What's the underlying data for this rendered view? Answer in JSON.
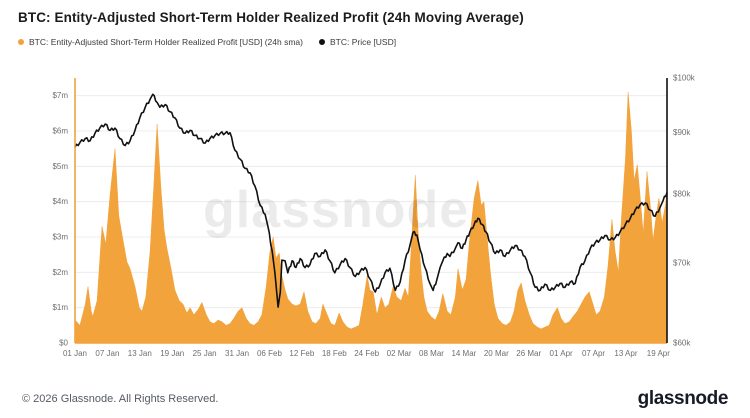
{
  "header": {
    "title": "BTC: Entity-Adjusted Short-Term Holder Realized Profit (24h Moving Average)",
    "legend": [
      {
        "label": "BTC: Entity-Adjusted Short-Term Holder Realized Profit [USD] (24h sma)",
        "color": "#F2A33C"
      },
      {
        "label": "BTC: Price [USD]",
        "color": "#111111"
      }
    ]
  },
  "watermark": "glassnode",
  "footer": {
    "copyright": "© 2026 Glassnode. All Rights Reserved.",
    "logo": "glassnode"
  },
  "chart_data": {
    "type": "area",
    "title": "BTC: Entity-Adjusted Short-Term Holder Realized Profit (24h Moving Average)",
    "grid": "horizontal",
    "legend_position": "top-left",
    "x_axis": {
      "unit": "date",
      "day_span": 109.6,
      "tick_days": [
        0,
        6,
        12,
        18,
        24,
        30,
        36,
        42,
        48,
        54,
        60,
        66,
        72,
        78,
        84,
        90,
        96,
        102,
        108
      ],
      "tick_labels": [
        "01 Jan",
        "07 Jan",
        "13 Jan",
        "19 Jan",
        "25 Jan",
        "31 Jan",
        "06 Feb",
        "12 Feb",
        "18 Feb",
        "24 Feb",
        "02 Mar",
        "08 Mar",
        "14 Mar",
        "20 Mar",
        "26 Mar",
        "01 Apr",
        "07 Apr",
        "13 Apr",
        "19 Apr"
      ]
    },
    "left_axis": {
      "scale": "linear",
      "min": 0,
      "max": 7.5,
      "unit": "USD millions",
      "color": "#F2A33C",
      "tick_values": [
        0,
        1,
        2,
        3,
        4,
        5,
        6,
        7
      ],
      "tick_labels": [
        "$0",
        "$1m",
        "$2m",
        "$3m",
        "$4m",
        "$5m",
        "$6m",
        "$7m"
      ]
    },
    "right_axis": {
      "scale": "log",
      "min": 60,
      "max": 100,
      "unit": "USD thousands",
      "color": "#111111",
      "tick_values": [
        60,
        70,
        80,
        90,
        100
      ],
      "tick_labels": [
        "$60k",
        "$70k",
        "$80k",
        "$90k",
        "$100k"
      ]
    },
    "series": [
      {
        "name": "BTC: Entity-Adjusted Short-Term Holder Realized Profit [USD] (24h sma)",
        "type": "area",
        "axis": "left",
        "color": "#F2A33C",
        "unit": "USD millions",
        "points": [
          [
            0,
            0.65
          ],
          [
            0.9,
            0.5
          ],
          [
            1.9,
            1.1
          ],
          [
            2.4,
            1.6
          ],
          [
            3,
            0.9
          ],
          [
            3.3,
            0.75
          ],
          [
            4.1,
            1.2
          ],
          [
            5,
            3.3
          ],
          [
            5.7,
            2.8
          ],
          [
            6.5,
            4.2
          ],
          [
            7.4,
            5.5
          ],
          [
            8.1,
            3.6
          ],
          [
            8.9,
            2.9
          ],
          [
            9.6,
            2.3
          ],
          [
            10.2,
            2.1
          ],
          [
            11.1,
            1.6
          ],
          [
            11.9,
            1.0
          ],
          [
            12.4,
            0.9
          ],
          [
            13.1,
            1.3
          ],
          [
            13.9,
            2.6
          ],
          [
            14.6,
            4.5
          ],
          [
            15.2,
            6.2
          ],
          [
            15.9,
            4.4
          ],
          [
            16.5,
            3.2
          ],
          [
            17,
            2.7
          ],
          [
            17.8,
            2.1
          ],
          [
            18.5,
            1.5
          ],
          [
            19.3,
            1.2
          ],
          [
            20,
            1.1
          ],
          [
            20.7,
            0.85
          ],
          [
            21.3,
            1.0
          ],
          [
            22,
            0.8
          ],
          [
            22.8,
            0.95
          ],
          [
            23.5,
            1.15
          ],
          [
            24.3,
            0.8
          ],
          [
            25,
            0.6
          ],
          [
            25.7,
            0.55
          ],
          [
            26.5,
            0.65
          ],
          [
            27.2,
            0.6
          ],
          [
            28,
            0.5
          ],
          [
            28.7,
            0.55
          ],
          [
            29.4,
            0.7
          ],
          [
            30.2,
            0.9
          ],
          [
            30.9,
            1.0
          ],
          [
            31.7,
            0.7
          ],
          [
            32.4,
            0.55
          ],
          [
            33.1,
            0.5
          ],
          [
            33.9,
            0.6
          ],
          [
            34.6,
            0.8
          ],
          [
            35.4,
            1.6
          ],
          [
            36.1,
            2.6
          ],
          [
            36.7,
            3.0
          ],
          [
            37.2,
            2.4
          ],
          [
            37.8,
            2.55
          ],
          [
            38.3,
            1.9
          ],
          [
            38.9,
            1.5
          ],
          [
            39.4,
            1.25
          ],
          [
            40.2,
            1.1
          ],
          [
            40.9,
            1.05
          ],
          [
            41.7,
            1.1
          ],
          [
            42.4,
            1.45
          ],
          [
            43.1,
            0.9
          ],
          [
            43.9,
            0.6
          ],
          [
            44.6,
            0.55
          ],
          [
            45.4,
            0.7
          ],
          [
            45.9,
            1.1
          ],
          [
            46.7,
            0.8
          ],
          [
            47.4,
            0.55
          ],
          [
            48.1,
            0.5
          ],
          [
            48.9,
            0.85
          ],
          [
            49.6,
            0.6
          ],
          [
            50.4,
            0.45
          ],
          [
            51.1,
            0.4
          ],
          [
            51.9,
            0.45
          ],
          [
            52.6,
            0.5
          ],
          [
            53.3,
            1.1
          ],
          [
            54.1,
            1.9
          ],
          [
            54.6,
            1.5
          ],
          [
            55.2,
            1.45
          ],
          [
            55.9,
            0.8
          ],
          [
            56.7,
            1.3
          ],
          [
            57.4,
            1.0
          ],
          [
            58.1,
            1.1
          ],
          [
            58.9,
            1.6
          ],
          [
            59.6,
            1.3
          ],
          [
            60.4,
            1.2
          ],
          [
            61.1,
            1.55
          ],
          [
            61.7,
            1.3
          ],
          [
            62.2,
            2.6
          ],
          [
            63,
            4.75
          ],
          [
            63.5,
            3.2
          ],
          [
            64.1,
            2.0
          ],
          [
            64.6,
            1.3
          ],
          [
            65.2,
            0.9
          ],
          [
            65.9,
            0.75
          ],
          [
            66.7,
            0.65
          ],
          [
            67.4,
            0.9
          ],
          [
            68.1,
            1.4
          ],
          [
            68.9,
            0.9
          ],
          [
            69.6,
            0.8
          ],
          [
            70.4,
            1.3
          ],
          [
            70.9,
            2.1
          ],
          [
            71.7,
            1.5
          ],
          [
            72.4,
            1.8
          ],
          [
            73.1,
            3.0
          ],
          [
            73.9,
            4.1
          ],
          [
            74.6,
            4.6
          ],
          [
            75.2,
            3.9
          ],
          [
            75.7,
            4.0
          ],
          [
            76.3,
            3.0
          ],
          [
            76.9,
            2.0
          ],
          [
            77.6,
            1.1
          ],
          [
            78.3,
            0.7
          ],
          [
            79.1,
            0.55
          ],
          [
            79.8,
            0.5
          ],
          [
            80.6,
            0.6
          ],
          [
            81.3,
            0.9
          ],
          [
            82,
            1.5
          ],
          [
            82.6,
            1.7
          ],
          [
            83.3,
            1.2
          ],
          [
            84.1,
            0.8
          ],
          [
            84.8,
            0.55
          ],
          [
            85.6,
            0.45
          ],
          [
            86.3,
            0.4
          ],
          [
            87,
            0.45
          ],
          [
            87.8,
            0.5
          ],
          [
            88.5,
            0.8
          ],
          [
            89.3,
            1.0
          ],
          [
            90,
            0.7
          ],
          [
            90.7,
            0.55
          ],
          [
            91.5,
            0.6
          ],
          [
            92.2,
            0.75
          ],
          [
            93,
            0.9
          ],
          [
            93.7,
            1.1
          ],
          [
            94.4,
            1.3
          ],
          [
            95.2,
            1.45
          ],
          [
            95.7,
            1.2
          ],
          [
            96.5,
            0.8
          ],
          [
            97.2,
            0.9
          ],
          [
            98,
            1.3
          ],
          [
            98.7,
            2.2
          ],
          [
            99.4,
            3.5
          ],
          [
            100,
            2.6
          ],
          [
            100.6,
            2.0
          ],
          [
            101.1,
            3.4
          ],
          [
            101.9,
            5.2
          ],
          [
            102.4,
            7.1
          ],
          [
            103,
            6.0
          ],
          [
            103.5,
            4.6
          ],
          [
            104.1,
            5.05
          ],
          [
            104.6,
            4.2
          ],
          [
            105.2,
            3.1
          ],
          [
            105.9,
            4.85
          ],
          [
            106.5,
            3.9
          ],
          [
            107,
            2.9
          ],
          [
            107.6,
            3.6
          ],
          [
            108.1,
            4.1
          ],
          [
            108.7,
            3.4
          ],
          [
            109.3,
            3.9
          ],
          [
            109.6,
            4.3
          ]
        ]
      },
      {
        "name": "BTC: Price [USD]",
        "type": "line",
        "axis": "right",
        "color": "#111111",
        "unit": "USD thousands",
        "points": [
          [
            0,
            87.5
          ],
          [
            0.9,
            88.3
          ],
          [
            1.9,
            89
          ],
          [
            2.8,
            88.6
          ],
          [
            3.7,
            89.9
          ],
          [
            4.6,
            90.8
          ],
          [
            5.6,
            91.5
          ],
          [
            6.5,
            90.4
          ],
          [
            7.4,
            90.8
          ],
          [
            8.3,
            89
          ],
          [
            9.3,
            87.8
          ],
          [
            10.2,
            88.6
          ],
          [
            11.1,
            90.4
          ],
          [
            12,
            92.6
          ],
          [
            13,
            94.5
          ],
          [
            13.9,
            96
          ],
          [
            14.4,
            96.9
          ],
          [
            15.2,
            95.4
          ],
          [
            15.7,
            94.5
          ],
          [
            16.7,
            95
          ],
          [
            17.6,
            93.7
          ],
          [
            18.5,
            92.6
          ],
          [
            19.4,
            90.8
          ],
          [
            20.4,
            89.9
          ],
          [
            21.3,
            90.4
          ],
          [
            22.2,
            89.5
          ],
          [
            23.1,
            89
          ],
          [
            24.1,
            88.2
          ],
          [
            25,
            89
          ],
          [
            25.9,
            89.5
          ],
          [
            26.9,
            89.9
          ],
          [
            27.8,
            89.9
          ],
          [
            28.7,
            90
          ],
          [
            29.6,
            87
          ],
          [
            30.6,
            85.5
          ],
          [
            31.5,
            84
          ],
          [
            32.4,
            83.3
          ],
          [
            33.3,
            81.2
          ],
          [
            34.3,
            78.2
          ],
          [
            35.2,
            76.9
          ],
          [
            35.7,
            75.2
          ],
          [
            36.5,
            71.6
          ],
          [
            37,
            68.7
          ],
          [
            37.6,
            64.3
          ],
          [
            38,
            66.2
          ],
          [
            38.3,
            70.4
          ],
          [
            38.9,
            70.3
          ],
          [
            39.4,
            68.7
          ],
          [
            40.2,
            70.3
          ],
          [
            40.9,
            69.4
          ],
          [
            41.7,
            70.6
          ],
          [
            42.6,
            69.4
          ],
          [
            43.5,
            69.8
          ],
          [
            44.4,
            71.3
          ],
          [
            45.4,
            70.9
          ],
          [
            46.3,
            71.8
          ],
          [
            47.2,
            70.3
          ],
          [
            48.1,
            68.7
          ],
          [
            49.1,
            69.8
          ],
          [
            50,
            70.6
          ],
          [
            50.9,
            69.4
          ],
          [
            51.9,
            68.2
          ],
          [
            52.8,
            68.9
          ],
          [
            53.7,
            69.4
          ],
          [
            54.6,
            67.9
          ],
          [
            55.6,
            66.2
          ],
          [
            56.5,
            67.2
          ],
          [
            57.4,
            68.7
          ],
          [
            58.3,
            69.3
          ],
          [
            59.3,
            66.4
          ],
          [
            60.2,
            67.5
          ],
          [
            61.1,
            70.3
          ],
          [
            62,
            72.4
          ],
          [
            62.6,
            74.3
          ],
          [
            63.3,
            73.9
          ],
          [
            63.9,
            71.8
          ],
          [
            64.8,
            69.4
          ],
          [
            65.7,
            67.3
          ],
          [
            66.3,
            66.4
          ],
          [
            67,
            67.8
          ],
          [
            67.6,
            69.4
          ],
          [
            68.1,
            70.3
          ],
          [
            68.9,
            71.3
          ],
          [
            69.4,
            70.9
          ],
          [
            70.4,
            72
          ],
          [
            70.9,
            72.8
          ],
          [
            71.7,
            72
          ],
          [
            72.4,
            73.2
          ],
          [
            73.1,
            74.3
          ],
          [
            73.9,
            75.4
          ],
          [
            74.6,
            76.3
          ],
          [
            75.4,
            75.4
          ],
          [
            76.1,
            74.3
          ],
          [
            76.9,
            72.8
          ],
          [
            77.8,
            71.3
          ],
          [
            78.7,
            71.8
          ],
          [
            79.6,
            70.9
          ],
          [
            80.6,
            71.8
          ],
          [
            81.5,
            72.4
          ],
          [
            82.4,
            71.8
          ],
          [
            83.3,
            70.9
          ],
          [
            84.3,
            68.7
          ],
          [
            85.2,
            66.8
          ],
          [
            86.1,
            66.4
          ],
          [
            87,
            67.2
          ],
          [
            88,
            66.4
          ],
          [
            88.9,
            66.8
          ],
          [
            89.8,
            67.3
          ],
          [
            90.7,
            66.8
          ],
          [
            91.7,
            67.5
          ],
          [
            92.6,
            67.3
          ],
          [
            93.5,
            69.4
          ],
          [
            94.4,
            70.3
          ],
          [
            95.4,
            72
          ],
          [
            96.3,
            72.8
          ],
          [
            97.2,
            73.2
          ],
          [
            98.1,
            73.8
          ],
          [
            99.1,
            73.2
          ],
          [
            100,
            73.5
          ],
          [
            100.9,
            74.3
          ],
          [
            101.9,
            75.4
          ],
          [
            102.8,
            76.3
          ],
          [
            103.7,
            77.5
          ],
          [
            104.6,
            78.3
          ],
          [
            105.6,
            78.6
          ],
          [
            106.5,
            77.5
          ],
          [
            107.4,
            76.6
          ],
          [
            108.3,
            77.9
          ],
          [
            108.9,
            79
          ],
          [
            109.6,
            80.2
          ]
        ]
      }
    ]
  }
}
